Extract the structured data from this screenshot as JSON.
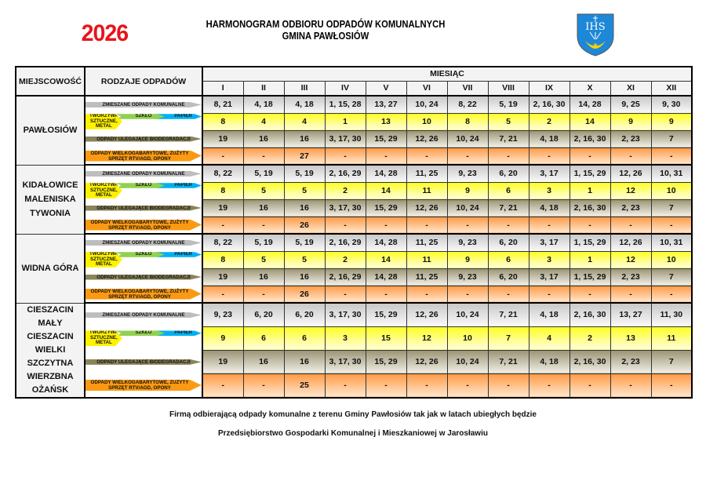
{
  "header": {
    "year": "2026",
    "title_line1": "HARMONOGRAM ODBIORU ODPADÓW KOMUNALNYCH",
    "title_line2": "GMINA PAWŁOSIÓW",
    "crest_text": "IHS",
    "crest_colors": {
      "field": "#1e88d8",
      "charge": "#ffd200",
      "letters": "#ffffff"
    }
  },
  "table": {
    "col_location": "MIEJSCOWOŚĆ",
    "col_waste": "RODZAJE ODPADÓW",
    "col_month_group": "MIESIĄC",
    "months": [
      "I",
      "II",
      "III",
      "IV",
      "V",
      "VI",
      "VII",
      "VIII",
      "IX",
      "X",
      "XI",
      "XII"
    ],
    "waste_types": {
      "mixed": "ZMIESZANE ODPADY KOMUNALNE",
      "plastic": "TWORZYWA SZTUCZNE, METAL",
      "glass": "SZKŁO",
      "paper": "PAPIER",
      "bio": "ODPADY ULEGAJĄCE BIODEGRADACJI",
      "bulk": "ODPADY WIELKOGABARYTOWE, ZUŻYTY SPRZĘT RTV/AGD, OPONY"
    },
    "colors": {
      "mixed": "#bdbdbd",
      "plastic": "#fff200",
      "glass": "#92d050",
      "paper": "#00b0f0",
      "bio": "#8a8458",
      "bulk": "#fb9a12"
    },
    "blocks": [
      {
        "locations": [
          "PAWŁOSIÓW"
        ],
        "mixed": [
          "8, 21",
          "4, 18",
          "4, 18",
          "1, 15, 28",
          "13, 27",
          "10, 24",
          "8, 22",
          "5, 19",
          "2, 16, 30",
          "14, 28",
          "9, 25",
          "9, 30"
        ],
        "segregated": [
          "8",
          "4",
          "4",
          "1",
          "13",
          "10",
          "8",
          "5",
          "2",
          "14",
          "9",
          "9"
        ],
        "bio": [
          "19",
          "16",
          "16",
          "3, 17, 30",
          "15, 29",
          "12, 26",
          "10, 24",
          "7, 21",
          "4, 18",
          "2, 16, 30",
          "2, 23",
          "7"
        ],
        "bulk": [
          "-",
          "-",
          "27",
          "-",
          "-",
          "-",
          "-",
          "-",
          "-",
          "-",
          "-",
          "-"
        ]
      },
      {
        "locations": [
          "KIDAŁOWICE",
          "MALENISKA",
          "TYWONIA"
        ],
        "mixed": [
          "8, 22",
          "5, 19",
          "5, 19",
          "2, 16, 29",
          "14, 28",
          "11, 25",
          "9, 23",
          "6, 20",
          "3, 17",
          "1, 15, 29",
          "12, 26",
          "10, 31"
        ],
        "segregated": [
          "8",
          "5",
          "5",
          "2",
          "14",
          "11",
          "9",
          "6",
          "3",
          "1",
          "12",
          "10"
        ],
        "bio": [
          "19",
          "16",
          "16",
          "3, 17, 30",
          "15, 29",
          "12, 26",
          "10, 24",
          "7, 21",
          "4, 18",
          "2, 16, 30",
          "2, 23",
          "7"
        ],
        "bulk": [
          "-",
          "-",
          "26",
          "-",
          "-",
          "-",
          "-",
          "-",
          "-",
          "-",
          "-",
          "-"
        ]
      },
      {
        "locations": [
          "WIDNA GÓRA"
        ],
        "mixed": [
          "8, 22",
          "5, 19",
          "5, 19",
          "2, 16, 29",
          "14, 28",
          "11, 25",
          "9, 23",
          "6, 20",
          "3, 17",
          "1, 15, 29",
          "12, 26",
          "10, 31"
        ],
        "segregated": [
          "8",
          "5",
          "5",
          "2",
          "14",
          "11",
          "9",
          "6",
          "3",
          "1",
          "12",
          "10"
        ],
        "bio": [
          "19",
          "16",
          "16",
          "2, 16, 29",
          "14, 28",
          "11, 25",
          "9, 23",
          "6, 20",
          "3, 17",
          "1, 15, 29",
          "2, 23",
          "7"
        ],
        "bulk": [
          "-",
          "-",
          "26",
          "-",
          "-",
          "-",
          "-",
          "-",
          "-",
          "-",
          "-",
          "-"
        ]
      },
      {
        "locations": [
          "CIESZACIN MAŁY",
          "CIESZACIN",
          "WIELKI",
          "SZCZYTNA",
          "WIERZBNA",
          "OŻAŃSK"
        ],
        "mixed": [
          "9, 23",
          "6, 20",
          "6, 20",
          "3, 17, 30",
          "15, 29",
          "12, 26",
          "10, 24",
          "7, 21",
          "4, 18",
          "2, 16, 30",
          "13, 27",
          "11, 30"
        ],
        "segregated": [
          "9",
          "6",
          "6",
          "3",
          "15",
          "12",
          "10",
          "7",
          "4",
          "2",
          "13",
          "11"
        ],
        "bio": [
          "19",
          "16",
          "16",
          "3, 17, 30",
          "15, 29",
          "12, 26",
          "10, 24",
          "7, 21",
          "4, 18",
          "2, 16, 30",
          "2, 23",
          "7"
        ],
        "bulk": [
          "-",
          "-",
          "25",
          "-",
          "-",
          "-",
          "-",
          "-",
          "-",
          "-",
          "-",
          "-"
        ]
      }
    ]
  },
  "footer": {
    "line1": "Firmą odbierającą odpady komunalne z terenu Gminy Pawłosiów tak jak w latach ubiegłych będzie",
    "line2": "Przedsiębiorstwo Gospodarki Komunalnej i Mieszkaniowej w Jarosławiu"
  }
}
